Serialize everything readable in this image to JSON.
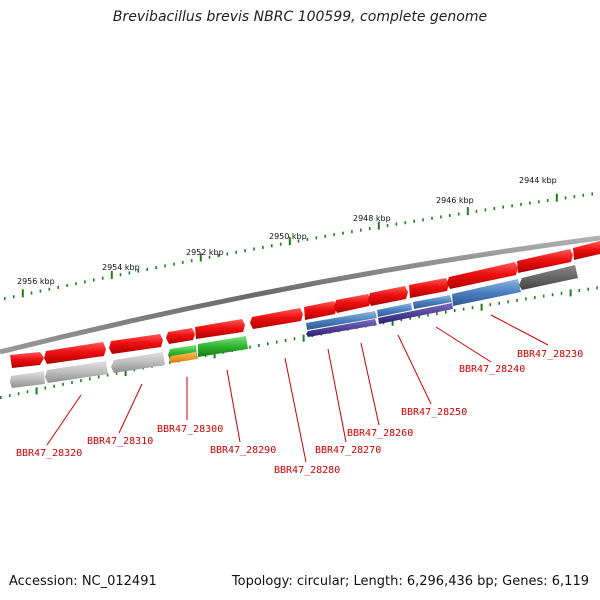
{
  "title": "Brevibacillus brevis NBRC 100599, complete genome",
  "footer": {
    "accession": "Accession: NC_012491",
    "summary": "Topology: circular; Length: 6,296,436 bp; Genes: 6,119"
  },
  "colors": {
    "forward_gene": "#e8141a",
    "reverse_gene": "#b8b8b8",
    "backbone": "#777777",
    "tick": "#1a7f1a",
    "label": "#d00000"
  },
  "kbp_labels": [
    "2956 kbp",
    "2954 kbp",
    "2952 kbp",
    "2950 kbp",
    "2948 kbp",
    "2946 kbp",
    "2944 kbp"
  ],
  "gene_labels": [
    "BBR47_28320",
    "BBR47_28310",
    "BBR47_28300",
    "BBR47_28290",
    "BBR47_28280",
    "BBR47_28270",
    "BBR47_28260",
    "BBR47_28250",
    "BBR47_28240",
    "BBR47_28230"
  ]
}
